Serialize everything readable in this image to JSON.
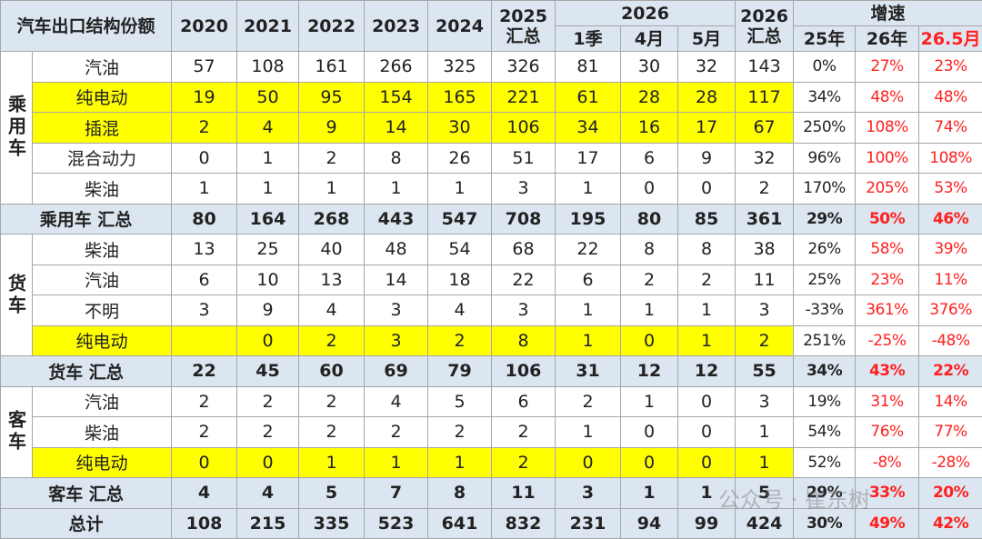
{
  "header": {
    "title": "汽车出口结构份额",
    "years": [
      2020,
      2021,
      2022,
      2023,
      2024
    ],
    "y2025": [
      "2025",
      "汇总"
    ],
    "y2026": "2026",
    "months": [
      "1季",
      "4月",
      "5月"
    ],
    "y2026total": [
      "2026",
      "汇总"
    ],
    "growth": "增速",
    "growth_cols": [
      "25年",
      "26年",
      "26.5月"
    ]
  },
  "groups": [
    {
      "name": "乘用车",
      "rows": [
        {
          "label": "汽油",
          "values": [
            57,
            108,
            161,
            266,
            325,
            326,
            81,
            30,
            32,
            143
          ],
          "growth": [
            "0%",
            "27%",
            "23%"
          ],
          "highlight": false
        },
        {
          "label": "纯电动",
          "values": [
            19,
            50,
            95,
            154,
            165,
            221,
            61,
            28,
            28,
            117
          ],
          "growth": [
            "34%",
            "48%",
            "48%"
          ],
          "highlight": true
        },
        {
          "label": "插混",
          "values": [
            2,
            4,
            9,
            14,
            30,
            106,
            34,
            16,
            17,
            67
          ],
          "growth": [
            "250%",
            "108%",
            "74%"
          ],
          "highlight": true
        },
        {
          "label": "混合动力",
          "values": [
            0,
            1,
            2,
            8,
            26,
            51,
            17,
            6,
            9,
            32
          ],
          "growth": [
            "96%",
            "100%",
            "108%"
          ],
          "highlight": false
        },
        {
          "label": "柴油",
          "values": [
            1,
            1,
            1,
            1,
            1,
            3,
            1,
            0,
            0,
            2
          ],
          "growth": [
            "170%",
            "205%",
            "53%"
          ],
          "highlight": false
        }
      ],
      "total": {
        "label": "乘用车 汇总",
        "values": [
          80,
          164,
          268,
          443,
          547,
          708,
          195,
          80,
          85,
          361
        ],
        "growth": [
          "29%",
          "50%",
          "46%"
        ]
      }
    },
    {
      "name": "货车",
      "rows": [
        {
          "label": "柴油",
          "values": [
            13,
            25,
            40,
            48,
            54,
            68,
            22,
            8,
            8,
            38
          ],
          "growth": [
            "26%",
            "58%",
            "39%"
          ],
          "highlight": false
        },
        {
          "label": "汽油",
          "values": [
            6,
            10,
            13,
            14,
            18,
            22,
            6,
            2,
            2,
            11
          ],
          "growth": [
            "25%",
            "23%",
            "11%"
          ],
          "highlight": false
        },
        {
          "label": "不明",
          "values": [
            3,
            9,
            4,
            3,
            4,
            3,
            1,
            1,
            1,
            3
          ],
          "growth": [
            "-33%",
            "361%",
            "376%"
          ],
          "highlight": false
        },
        {
          "label": "纯电动",
          "values": [
            null,
            0,
            2,
            3,
            2,
            8,
            1,
            0,
            1,
            2
          ],
          "growth": [
            "251%",
            "-25%",
            "-48%"
          ],
          "highlight": true
        }
      ],
      "total": {
        "label": "货车 汇总",
        "values": [
          22,
          45,
          60,
          69,
          79,
          106,
          31,
          12,
          12,
          55
        ],
        "growth": [
          "34%",
          "43%",
          "22%"
        ]
      }
    },
    {
      "name": "客车",
      "rows": [
        {
          "label": "汽油",
          "values": [
            2,
            2,
            2,
            4,
            5,
            6,
            2,
            1,
            0,
            3
          ],
          "growth": [
            "19%",
            "31%",
            "14%"
          ],
          "highlight": false
        },
        {
          "label": "柴油",
          "values": [
            2,
            2,
            2,
            2,
            2,
            2,
            1,
            0,
            0,
            1
          ],
          "growth": [
            "54%",
            "76%",
            "77%"
          ],
          "highlight": false
        },
        {
          "label": "纯电动",
          "values": [
            0,
            0,
            1,
            1,
            1,
            2,
            0,
            0,
            0,
            1
          ],
          "growth": [
            "52%",
            "-8%",
            "-28%"
          ],
          "highlight": true
        }
      ],
      "total": {
        "label": "客车 汇总",
        "values": [
          4,
          4,
          5,
          7,
          8,
          11,
          3,
          1,
          1,
          5
        ],
        "growth": [
          "29%",
          "33%",
          "20%"
        ]
      }
    }
  ],
  "grand_total": {
    "label": "总计",
    "values": [
      108,
      215,
      335,
      523,
      641,
      832,
      231,
      94,
      99,
      424
    ],
    "growth": [
      "30%",
      "49%",
      "42%"
    ]
  },
  "watermark": "公众号 · 崔东树"
}
